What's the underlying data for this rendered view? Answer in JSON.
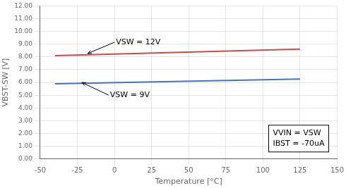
{
  "chart_data": {
    "type": "line",
    "title": "",
    "xlabel": "Temperature [°C]",
    "ylabel": "VBST-SW [V]",
    "x": [
      -40,
      125
    ],
    "series": [
      {
        "color": "#c0504d",
        "values": [
          8.1,
          8.62
        ]
      },
      {
        "color": "#4472c4",
        "values": [
          5.9,
          6.27
        ]
      }
    ],
    "xlim": [
      -50,
      150
    ],
    "ylim": [
      0.0,
      12.0
    ],
    "xticks": [
      -50,
      -25,
      0,
      25,
      50,
      75,
      100,
      125,
      150
    ],
    "yticks": [
      {
        "value": 0.0,
        "label": "0.00"
      },
      {
        "value": 1.0,
        "label": "1.00"
      },
      {
        "value": 2.0,
        "label": "2.00"
      },
      {
        "value": 3.0,
        "label": "3.00"
      },
      {
        "value": 4.0,
        "label": "4.00"
      },
      {
        "value": 5.0,
        "label": "5.00"
      },
      {
        "value": 6.0,
        "label": "6.00"
      },
      {
        "value": 7.0,
        "label": "7.00"
      },
      {
        "value": 8.0,
        "label": "8.00"
      },
      {
        "value": 9.0,
        "label": "9.00"
      },
      {
        "value": 10.0,
        "label": "10.00"
      },
      {
        "value": 11.0,
        "label": "11.00"
      },
      {
        "value": 12.0,
        "label": "12.00"
      }
    ],
    "grid": true,
    "annotations": [
      {
        "text": "VSW = 12V",
        "x": -18,
        "y": 8.27
      },
      {
        "text": "VSW = 9V",
        "x": -22,
        "y": 6.0
      },
      {
        "text": [
          "VVIN = VSW",
          "IBST = -70uA"
        ]
      }
    ]
  }
}
